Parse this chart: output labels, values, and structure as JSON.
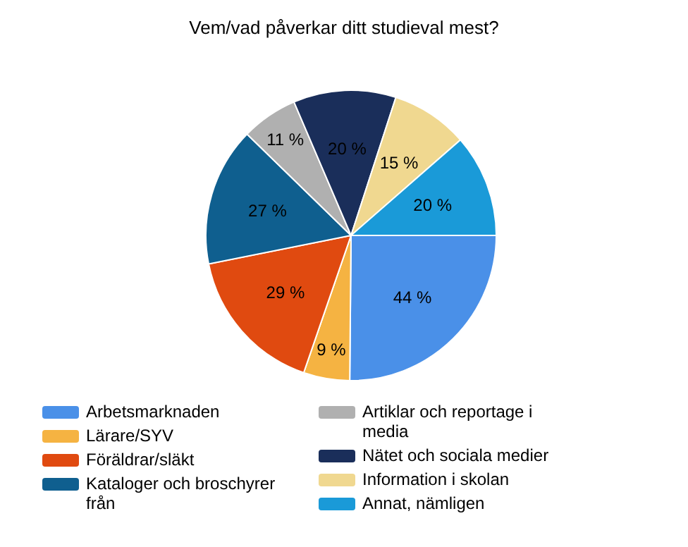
{
  "chart_data": {
    "type": "pie",
    "title": "Vem/vad påverkar ditt studieval mest?",
    "categories": [
      "Arbetsmarknaden",
      "Lärare/SYV",
      "Föräldrar/släkt",
      "Kataloger och broschyrer från",
      "Artiklar och reportage i media",
      "Nätet och sociala medier",
      "Information i skolan",
      "Annat, nämligen"
    ],
    "values": [
      44,
      9,
      29,
      27,
      11,
      20,
      15,
      20
    ],
    "value_labels": [
      "44 %",
      "9 %",
      "29 %",
      "27 %",
      "11 %",
      "20 %",
      "15 %",
      "20 %"
    ],
    "colors": [
      "#4a90e8",
      "#f5b342",
      "#e04a10",
      "#0f5f8f",
      "#b0b0b0",
      "#1a2e5a",
      "#f0d890",
      "#1a9ad8"
    ],
    "legend": "bottom"
  }
}
